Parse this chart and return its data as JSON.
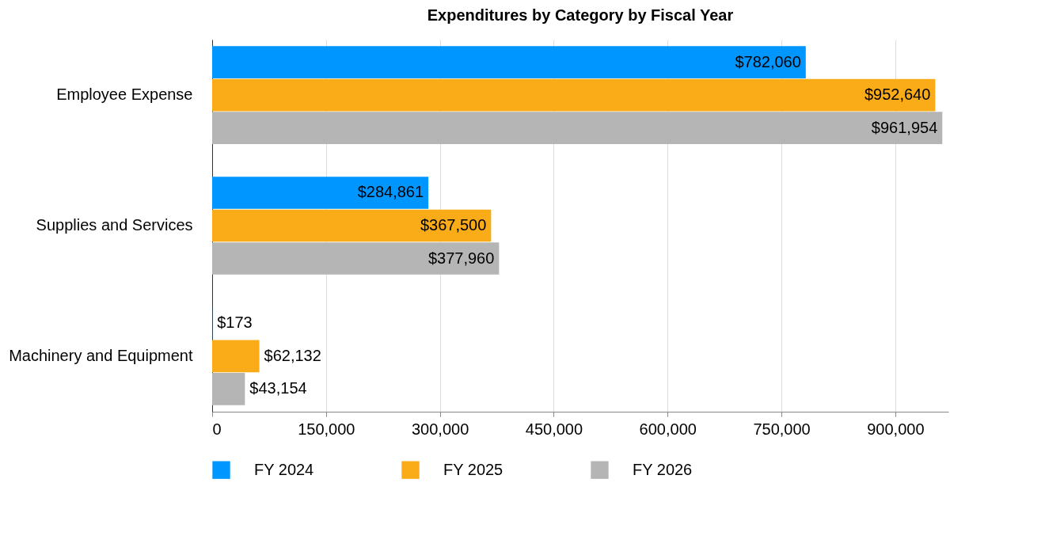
{
  "chart_data": {
    "type": "bar",
    "orientation": "horizontal",
    "title": "Expenditures by Category by Fiscal Year",
    "categories": [
      "Employee Expense",
      "Supplies and Services",
      "Machinery and Equipment"
    ],
    "series": [
      {
        "name": "FY 2024",
        "color": "#0096ff",
        "values": [
          782060,
          284861,
          173
        ],
        "value_labels": [
          "$782,060",
          "$284,861",
          "$173"
        ]
      },
      {
        "name": "FY 2025",
        "color": "#f9ab18",
        "values": [
          952640,
          367500,
          62132
        ],
        "value_labels": [
          "$952,640",
          "$367,500",
          "$62,132"
        ]
      },
      {
        "name": "FY 2026",
        "color": "#b5b5b5",
        "values": [
          961954,
          377960,
          43154
        ],
        "value_labels": [
          "$961,954",
          "$377,960",
          "$43,154"
        ]
      }
    ],
    "xlim": [
      0,
      970000
    ],
    "xticks": [
      0,
      {
        "value": 150000,
        "label": "150,000"
      },
      {
        "value": 300000,
        "label": "300,000"
      },
      {
        "value": 450000,
        "label": "450,000"
      },
      {
        "value": 600000,
        "label": "600,000"
      },
      {
        "value": 750000,
        "label": "750,000"
      },
      {
        "value": 900000,
        "label": "900,000"
      }
    ],
    "grid": "x",
    "legend": "bottom"
  }
}
